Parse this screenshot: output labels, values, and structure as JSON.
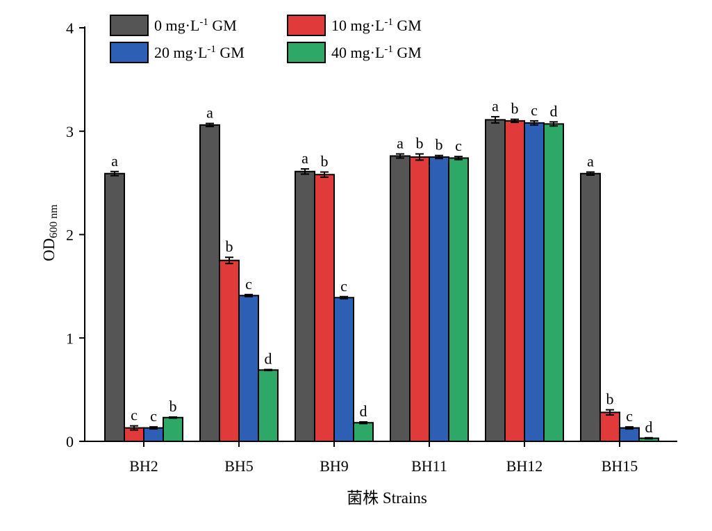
{
  "chart_data": {
    "type": "bar",
    "title": "",
    "xlabel": "菌株 Strains",
    "ylabel": {
      "main": "OD",
      "subscript": "600 nm"
    },
    "ylim": [
      0,
      4
    ],
    "yticks": [
      "0",
      "1",
      "2",
      "3",
      "4"
    ],
    "grid": false,
    "legend_position": "top-left",
    "categories": [
      "BH2",
      "BH5",
      "BH9",
      "BH11",
      "BH12",
      "BH15"
    ],
    "series": [
      {
        "name": {
          "pre": "0 mg·L",
          "sup": "-1",
          "post": " GM"
        },
        "color": "#555555",
        "values": [
          2.59,
          3.06,
          2.61,
          2.76,
          3.11,
          2.59
        ],
        "errors": [
          0.02,
          0.015,
          0.025,
          0.02,
          0.03,
          0.015
        ],
        "labels": [
          "a",
          "a",
          "a",
          "a",
          "a",
          "a"
        ]
      },
      {
        "name": {
          "pre": "10 mg·L",
          "sup": "-1",
          "post": " GM"
        },
        "color": "#e03a3a",
        "values": [
          0.13,
          1.75,
          2.58,
          2.75,
          3.1,
          0.28
        ],
        "errors": [
          0.02,
          0.03,
          0.025,
          0.03,
          0.015,
          0.025
        ],
        "labels": [
          "c",
          "b",
          "b",
          "b",
          "b",
          "b"
        ]
      },
      {
        "name": {
          "pre": "20 mg·L",
          "sup": "-1",
          "post": " GM"
        },
        "color": "#2d5fb4",
        "values": [
          0.13,
          1.41,
          1.39,
          2.75,
          3.08,
          0.13
        ],
        "errors": [
          0.01,
          0.01,
          0.01,
          0.015,
          0.02,
          0.01
        ],
        "labels": [
          "c",
          "c",
          "c",
          "b",
          "c",
          "c"
        ]
      },
      {
        "name": {
          "pre": "40 mg·L",
          "sup": "-1",
          "post": " GM"
        },
        "color": "#2ea866",
        "values": [
          0.23,
          0.69,
          0.18,
          2.74,
          3.07,
          0.03
        ],
        "errors": [
          0.005,
          0.005,
          0.008,
          0.015,
          0.02,
          0.005
        ],
        "labels": [
          "b",
          "d",
          "d",
          "c",
          "d",
          "d"
        ]
      }
    ]
  }
}
